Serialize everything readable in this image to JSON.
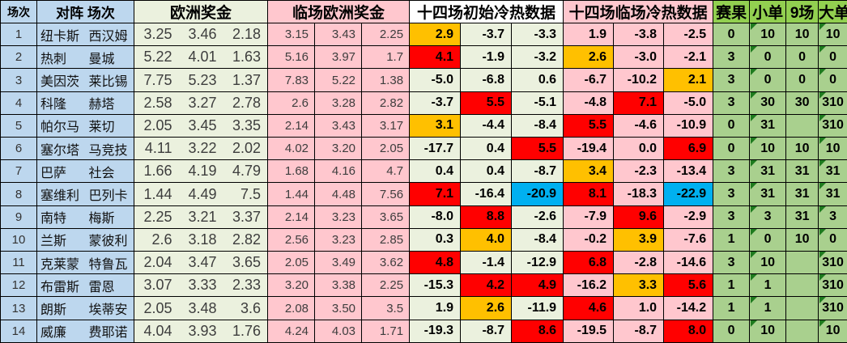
{
  "headers": {
    "match_no": "场次",
    "matchup": "对阵 场次",
    "euro_odds": "欧洲奖金",
    "live_euro_odds": "临场欧洲奖金",
    "initial_hotcold": "十四场初始冷热数据",
    "live_hotcold": "十四场临场冷热数据",
    "result": "赛果",
    "small_bet": "小单",
    "nine_games": "9场",
    "big_bet": "大单"
  },
  "colors": {
    "light_blue": "#BDD7EE",
    "light_green": "#EBF1DE",
    "pink": "#FFC7CE",
    "header_bright_green": "#92D050",
    "result_cell_green": "#A9D08E",
    "white_header": "#FFFFFF",
    "triangle_green": "#1E7B1E",
    "border": "#000000",
    "highlight": {
      "red": "#FF0000",
      "orange": "#FFC000",
      "blue": "#00B0F0"
    }
  },
  "rows": [
    {
      "no": "1",
      "home": "纽卡斯",
      "away": "西汉姆",
      "odds": [
        "3.25",
        "3.46",
        "2.18"
      ],
      "live_odds": [
        "3.15",
        "3.43",
        "2.25"
      ],
      "init_hc": [
        "2.9",
        "-3.7",
        "-3.3"
      ],
      "init_hl": [
        "orange",
        "",
        ""
      ],
      "live_hc": [
        "1.9",
        "-3.8",
        "-2.5"
      ],
      "live_hl": [
        "",
        "",
        ""
      ],
      "res": [
        "0",
        "10",
        "10",
        "10"
      ]
    },
    {
      "no": "2",
      "home": "热刺",
      "away": "曼城",
      "odds": [
        "5.22",
        "4.01",
        "1.63"
      ],
      "live_odds": [
        "5.16",
        "3.97",
        "1.7"
      ],
      "init_hc": [
        "4.1",
        "-1.9",
        "-3.2"
      ],
      "init_hl": [
        "red",
        "",
        ""
      ],
      "live_hc": [
        "2.6",
        "-3.0",
        "-2.1"
      ],
      "live_hl": [
        "orange",
        "",
        ""
      ],
      "res": [
        "3",
        "0",
        "0",
        "0"
      ]
    },
    {
      "no": "3",
      "home": "美因茨",
      "away": "莱比锡",
      "odds": [
        "7.75",
        "5.23",
        "1.37"
      ],
      "live_odds": [
        "7.83",
        "5.22",
        "1.38"
      ],
      "init_hc": [
        "-5.0",
        "-6.8",
        "0.6"
      ],
      "init_hl": [
        "",
        "",
        ""
      ],
      "live_hc": [
        "-6.7",
        "-10.2",
        "2.1"
      ],
      "live_hl": [
        "",
        "",
        "orange"
      ],
      "res": [
        "3",
        "0",
        "0",
        "0"
      ]
    },
    {
      "no": "4",
      "home": "科隆",
      "away": "赫塔",
      "odds": [
        "2.58",
        "3.27",
        "2.78"
      ],
      "live_odds": [
        "2.6",
        "3.28",
        "2.82"
      ],
      "init_hc": [
        "-3.7",
        "5.5",
        "-5.1"
      ],
      "init_hl": [
        "",
        "red",
        ""
      ],
      "live_hc": [
        "-4.8",
        "7.1",
        "-5.0"
      ],
      "live_hl": [
        "",
        "red",
        ""
      ],
      "res": [
        "3",
        "30",
        "30",
        "310"
      ]
    },
    {
      "no": "5",
      "home": "帕尔马",
      "away": "莱切",
      "odds": [
        "2.05",
        "3.45",
        "3.35"
      ],
      "live_odds": [
        "2.14",
        "3.43",
        "3.17"
      ],
      "init_hc": [
        "3.1",
        "-4.4",
        "-8.4"
      ],
      "init_hl": [
        "orange",
        "",
        ""
      ],
      "live_hc": [
        "5.5",
        "-4.6",
        "-10.9"
      ],
      "live_hl": [
        "red",
        "",
        ""
      ],
      "res": [
        "0",
        "31",
        "",
        "310"
      ]
    },
    {
      "no": "6",
      "home": "塞尔塔",
      "away": "马竞技",
      "odds": [
        "4.11",
        "3.22",
        "2.02"
      ],
      "live_odds": [
        "4.02",
        "3.20",
        "2.05"
      ],
      "init_hc": [
        "-17.7",
        "0.4",
        "5.5"
      ],
      "init_hl": [
        "",
        "",
        "red"
      ],
      "live_hc": [
        "-19.4",
        "0.0",
        "6.9"
      ],
      "live_hl": [
        "",
        "",
        "red"
      ],
      "res": [
        "0",
        "10",
        "10",
        "10"
      ]
    },
    {
      "no": "7",
      "home": "巴萨",
      "away": "社会",
      "odds": [
        "1.66",
        "4.19",
        "4.79"
      ],
      "live_odds": [
        "1.68",
        "4.16",
        "4.7"
      ],
      "init_hc": [
        "0.4",
        "0.4",
        "-8.7"
      ],
      "init_hl": [
        "",
        "",
        ""
      ],
      "live_hc": [
        "3.4",
        "-2.3",
        "-13.4"
      ],
      "live_hl": [
        "orange",
        "",
        ""
      ],
      "res": [
        "3",
        "31",
        "31",
        "31"
      ]
    },
    {
      "no": "8",
      "home": "塞维利",
      "away": "巴列卡",
      "odds": [
        "1.44",
        "4.49",
        "7.5"
      ],
      "live_odds": [
        "1.44",
        "4.48",
        "7.56"
      ],
      "init_hc": [
        "7.1",
        "-16.4",
        "-20.9"
      ],
      "init_hl": [
        "red",
        "",
        "blue"
      ],
      "live_hc": [
        "8.1",
        "-18.3",
        "-22.9"
      ],
      "live_hl": [
        "red",
        "",
        "blue"
      ],
      "res": [
        "3",
        "31",
        "31",
        "31"
      ]
    },
    {
      "no": "9",
      "home": "南特",
      "away": "梅斯",
      "odds": [
        "2.25",
        "3.21",
        "3.37"
      ],
      "live_odds": [
        "2.14",
        "3.23",
        "3.65"
      ],
      "init_hc": [
        "-8.0",
        "8.8",
        "-2.6"
      ],
      "init_hl": [
        "",
        "red",
        ""
      ],
      "live_hc": [
        "-7.9",
        "9.6",
        "-2.9"
      ],
      "live_hl": [
        "",
        "red",
        ""
      ],
      "res": [
        "3",
        "3",
        "31",
        "3"
      ]
    },
    {
      "no": "10",
      "home": "兰斯",
      "away": "蒙彼利",
      "odds": [
        "2.6",
        "3.18",
        "2.82"
      ],
      "live_odds": [
        "2.56",
        "3.23",
        "2.85"
      ],
      "init_hc": [
        "0.3",
        "4.0",
        "-8.4"
      ],
      "init_hl": [
        "",
        "orange",
        ""
      ],
      "live_hc": [
        "-0.2",
        "3.9",
        "-7.6"
      ],
      "live_hl": [
        "",
        "orange",
        ""
      ],
      "res": [
        "1",
        "0",
        "10",
        "0"
      ]
    },
    {
      "no": "11",
      "home": "克莱蒙",
      "away": "特鲁瓦",
      "odds": [
        "2.04",
        "3.47",
        "3.65"
      ],
      "live_odds": [
        "2.05",
        "3.49",
        "3.62"
      ],
      "init_hc": [
        "4.8",
        "-1.4",
        "-12.9"
      ],
      "init_hl": [
        "red",
        "",
        ""
      ],
      "live_hc": [
        "6.8",
        "-2.8",
        "-14.6"
      ],
      "live_hl": [
        "red",
        "",
        ""
      ],
      "res": [
        "3",
        "10",
        "",
        "310"
      ]
    },
    {
      "no": "12",
      "home": "布雷斯",
      "away": "雷恩",
      "odds": [
        "3.07",
        "3.33",
        "2.33"
      ],
      "live_odds": [
        "3.20",
        "3.38",
        "2.25"
      ],
      "init_hc": [
        "-15.3",
        "4.2",
        "4.9"
      ],
      "init_hl": [
        "",
        "red",
        "red"
      ],
      "live_hc": [
        "-16.2",
        "3.3",
        "5.6"
      ],
      "live_hl": [
        "",
        "orange",
        "red"
      ],
      "res": [
        "1",
        "1",
        "",
        "310"
      ]
    },
    {
      "no": "13",
      "home": "朗斯",
      "away": "埃蒂安",
      "odds": [
        "2.05",
        "3.48",
        "3.6"
      ],
      "live_odds": [
        "2.08",
        "3.50",
        "3.5"
      ],
      "init_hc": [
        "1.9",
        "2.6",
        "-11.9"
      ],
      "init_hl": [
        "",
        "orange",
        ""
      ],
      "live_hc": [
        "4.6",
        "1.0",
        "-14.2"
      ],
      "live_hl": [
        "red",
        "",
        ""
      ],
      "res": [
        "1",
        "1",
        "",
        "310"
      ]
    },
    {
      "no": "14",
      "home": "威廉",
      "away": "费耶诺",
      "odds": [
        "4.04",
        "3.93",
        "1.76"
      ],
      "live_odds": [
        "4.24",
        "4.03",
        "1.71"
      ],
      "init_hc": [
        "-19.3",
        "-8.7",
        "8.6"
      ],
      "init_hl": [
        "",
        "",
        "red"
      ],
      "live_hc": [
        "-19.5",
        "-8.7",
        "8.0"
      ],
      "live_hl": [
        "",
        "",
        "red"
      ],
      "res": [
        "0",
        "10",
        "",
        "10"
      ]
    }
  ]
}
